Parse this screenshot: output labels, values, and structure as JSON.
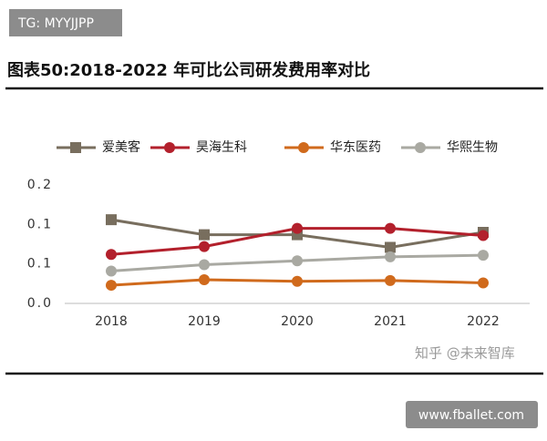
{
  "tag": "TG: MYYJJPP",
  "watermark": "知乎 @未来智库",
  "footer_url": "www.fballet.com",
  "chart_data": {
    "type": "line",
    "title": "图表50:2018-2022 年可比公司研发费用率对比",
    "categories": [
      "2018",
      "2019",
      "2020",
      "2021",
      "2022"
    ],
    "series": [
      {
        "name": "爱美客",
        "color": "#786e5e",
        "marker": "square",
        "values": [
          0.106,
          0.087,
          0.087,
          0.071,
          0.09
        ]
      },
      {
        "name": "昊海生科",
        "color": "#b3202c",
        "marker": "circle",
        "values": [
          0.062,
          0.072,
          0.095,
          0.095,
          0.086
        ]
      },
      {
        "name": "华东医药",
        "color": "#d06a1c",
        "marker": "circle",
        "values": [
          0.023,
          0.03,
          0.028,
          0.029,
          0.026
        ]
      },
      {
        "name": "华熙生物",
        "color": "#a9a9a2",
        "marker": "circle",
        "values": [
          0.041,
          0.049,
          0.054,
          0.059,
          0.061
        ]
      }
    ],
    "ylim": [
      0,
      0.15
    ],
    "yticks": [
      {
        "value": 0,
        "label": "0.0"
      },
      {
        "value": 0.05,
        "label": "0.1"
      },
      0.1,
      {
        "value": 0.15,
        "label": "0.2"
      }
    ],
    "grid": false,
    "legend": "top"
  }
}
